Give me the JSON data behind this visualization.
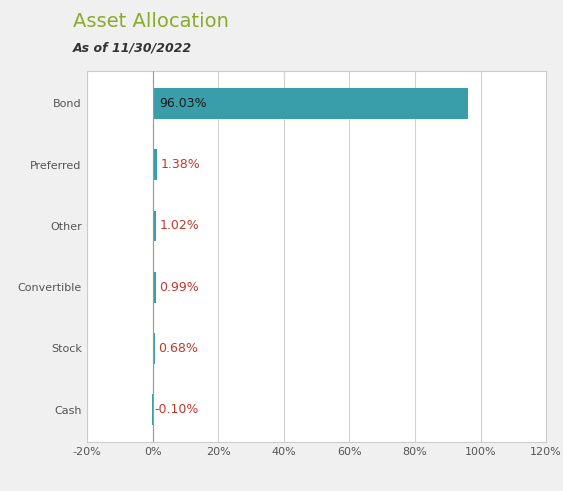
{
  "title": "Asset Allocation",
  "subtitle": "As of 11/30/2022",
  "categories": [
    "Bond",
    "Preferred",
    "Other",
    "Convertible",
    "Stock",
    "Cash"
  ],
  "values": [
    96.03,
    1.38,
    1.02,
    0.99,
    0.68,
    -0.1
  ],
  "labels": [
    "96.03%",
    "1.38%",
    "1.02%",
    "0.99%",
    "0.68%",
    "-0.10%"
  ],
  "bar_color": "#3a9daa",
  "title_color": "#8aab2a",
  "subtitle_color": "#333333",
  "label_color_inside": "#1a1a1a",
  "label_color_outside": "#c0392b",
  "axis_label_color": "#555555",
  "background_color": "#f0f0f0",
  "plot_bg_color": "#ffffff",
  "grid_color": "#d0d0d0",
  "border_color": "#cccccc",
  "xlim": [
    -20,
    120
  ],
  "xticks": [
    -20,
    0,
    20,
    40,
    60,
    80,
    100,
    120
  ],
  "title_fontsize": 14,
  "subtitle_fontsize": 9,
  "label_fontsize": 9,
  "tick_fontsize": 8,
  "bar_height": 0.5,
  "inside_threshold": 10
}
